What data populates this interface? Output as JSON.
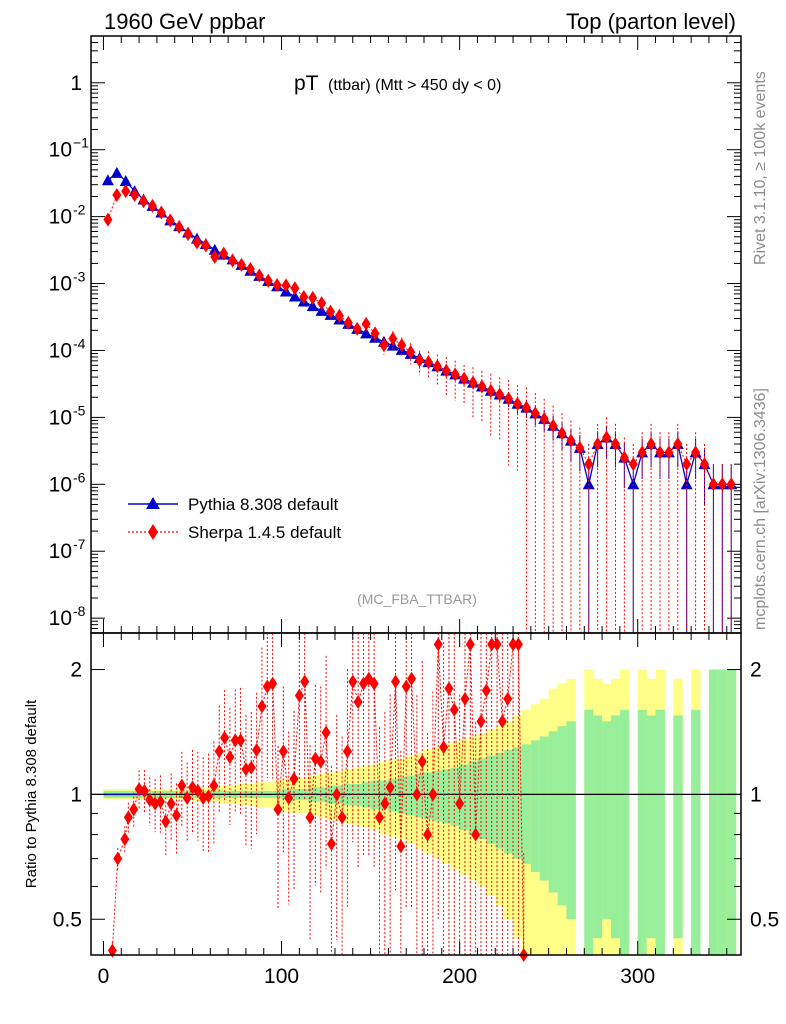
{
  "header": {
    "left": "1960 GeV ppbar",
    "right": "Top (parton level)"
  },
  "side": {
    "rivet": "Rivet 3.1.10, ≥ 100k events",
    "mcplots": "mcplots.cern.ch [arXiv:1306.3436]"
  },
  "chart_data": [
    {
      "type": "line",
      "panel": "main",
      "title_main": "pT",
      "title_sub": "(ttbar) (Mtt > 450 dy < 0)",
      "watermark": "(MC_FBA_TTBAR)",
      "yscale": "log",
      "ylim": [
        6e-09,
        5
      ],
      "xlim": [
        -7,
        358
      ],
      "ytick_labels": [
        {
          "value": 1,
          "base": "1",
          "exp": ""
        },
        {
          "value": 0.1,
          "base": "10",
          "exp": "−1"
        },
        {
          "value": 0.01,
          "base": "10",
          "exp": "-2"
        },
        {
          "value": 0.001,
          "base": "10",
          "exp": "-3"
        },
        {
          "value": 0.0001,
          "base": "10",
          "exp": "-4"
        },
        {
          "value": 1e-05,
          "base": "10",
          "exp": "-5"
        },
        {
          "value": 1e-06,
          "base": "10",
          "exp": "-6"
        },
        {
          "value": 1e-07,
          "base": "10",
          "exp": "-7"
        },
        {
          "value": 1e-08,
          "base": "10",
          "exp": "-8"
        }
      ],
      "legend": [
        {
          "label": "Pythia 8.308 default",
          "color": "#0000cc",
          "marker": "triangle",
          "line": "solid"
        },
        {
          "label": "Sherpa 1.4.5 default",
          "color": "#ff0000",
          "marker": "diamond",
          "line": "dotted"
        }
      ],
      "series": [
        {
          "name": "Pythia 8.308 default",
          "color": "#0000cc",
          "x": [
            2.5,
            7.5,
            12.5,
            17.5,
            22.5,
            27.5,
            32.5,
            37.5,
            42.5,
            47.5,
            52.5,
            57.5,
            62.5,
            67.5,
            72.5,
            77.5,
            82.5,
            87.5,
            92.5,
            97.5,
            102.5,
            107.5,
            112.5,
            117.5,
            122.5,
            127.5,
            132.5,
            137.5,
            142.5,
            147.5,
            152.5,
            157.5,
            162.5,
            167.5,
            172.5,
            177.5,
            182.5,
            187.5,
            192.5,
            197.5,
            202.5,
            207.5,
            212.5,
            217.5,
            222.5,
            227.5,
            232.5,
            237.5,
            242.5,
            247.5,
            252.5,
            257.5,
            262.5,
            267.5,
            272.5,
            277.5,
            282.5,
            287.5,
            292.5,
            297.5,
            302.5,
            307.5,
            312.5,
            317.5,
            322.5,
            327.5,
            332.5,
            337.5,
            342.5,
            347.5,
            352.5
          ],
          "y": [
            0.035,
            0.045,
            0.034,
            0.024,
            0.018,
            0.0145,
            0.0115,
            0.0088,
            0.0072,
            0.0058,
            0.0047,
            0.0039,
            0.0032,
            0.0027,
            0.0023,
            0.0019,
            0.00155,
            0.0013,
            0.00109,
            0.00091,
            0.00076,
            0.00064,
            0.00054,
            0.00046,
            0.00039,
            0.00034,
            0.00029,
            0.00025,
            0.00021,
            0.00018,
            0.000155,
            0.000135,
            0.000118,
            0.000102,
            8.9e-05,
            7.7e-05,
            6.7e-05,
            5.8e-05,
            5e-05,
            4.4e-05,
            3.8e-05,
            3.3e-05,
            2.9e-05,
            2.5e-05,
            2.2e-05,
            1.9e-05,
            1.6e-05,
            1.4e-05,
            1.15e-05,
            9.5e-06,
            7.5e-06,
            5.8e-06,
            4.5e-06,
            3.5e-06,
            1e-06,
            4e-06,
            5e-06,
            4e-06,
            2.5e-06,
            1e-06,
            3e-06,
            4e-06,
            3e-06,
            3e-06,
            4e-06,
            1e-06,
            3e-06,
            2e-06,
            1e-06,
            1e-06,
            1e-06
          ],
          "yerr_rel": [
            0.01,
            0.01,
            0.01,
            0.01,
            0.01,
            0.01,
            0.01,
            0.01,
            0.01,
            0.01,
            0.01,
            0.01,
            0.015,
            0.015,
            0.015,
            0.015,
            0.02,
            0.02,
            0.02,
            0.02,
            0.03,
            0.03,
            0.03,
            0.03,
            0.04,
            0.04,
            0.04,
            0.05,
            0.05,
            0.06,
            0.06,
            0.07,
            0.08,
            0.08,
            0.09,
            0.1,
            0.1,
            0.11,
            0.12,
            0.13,
            0.15,
            0.16,
            0.18,
            0.2,
            0.22,
            0.25,
            0.28,
            0.3,
            0.33,
            0.36,
            0.4,
            0.45,
            0.5,
            0.55,
            1,
            0.55,
            0.5,
            0.55,
            0.65,
            1,
            0.6,
            0.55,
            0.6,
            0.6,
            0.55,
            1,
            0.6,
            0.75,
            1,
            1,
            1
          ]
        },
        {
          "name": "Sherpa 1.4.5 default",
          "color": "#ff0000",
          "x": [
            2.5,
            7.5,
            12.5,
            17.5,
            22.5,
            27.5,
            32.5,
            37.5,
            42.5,
            47.5,
            52.5,
            57.5,
            62.5,
            67.5,
            72.5,
            77.5,
            82.5,
            87.5,
            92.5,
            97.5,
            102.5,
            107.5,
            112.5,
            117.5,
            122.5,
            127.5,
            132.5,
            137.5,
            142.5,
            147.5,
            152.5,
            157.5,
            162.5,
            167.5,
            172.5,
            177.5,
            182.5,
            187.5,
            192.5,
            197.5,
            202.5,
            207.5,
            212.5,
            217.5,
            222.5,
            227.5,
            232.5,
            237.5,
            242.5,
            247.5,
            252.5,
            257.5,
            262.5,
            267.5,
            272.5,
            277.5,
            282.5,
            287.5,
            292.5,
            297.5,
            302.5,
            307.5,
            312.5,
            317.5,
            322.5,
            327.5,
            332.5,
            337.5,
            342.5,
            347.5,
            352.5
          ],
          "y": [
            0.009,
            0.021,
            0.024,
            0.021,
            0.017,
            0.0145,
            0.0115,
            0.0088,
            0.007,
            0.0055,
            0.0041,
            0.0037,
            0.0025,
            0.0028,
            0.0022,
            0.0019,
            0.00165,
            0.00132,
            0.0011,
            0.00095,
            0.00094,
            0.00085,
            0.00063,
            0.00061,
            0.00051,
            0.00038,
            0.00033,
            0.00026,
            0.00021,
            0.00025,
            0.00018,
            0.00012,
            0.00015,
            0.00012,
            9.5e-05,
            7.1e-05,
            6.7e-05,
            5.8e-05,
            5e-05,
            4.4e-05,
            3.8e-05,
            3.3e-05,
            2.9e-05,
            2.5e-05,
            2.2e-05,
            1.9e-05,
            1.6e-05,
            1.4e-05,
            1.15e-05,
            9.5e-06,
            7.5e-06,
            5.8e-06,
            4.5e-06,
            3.5e-06,
            2e-06,
            4e-06,
            5e-06,
            4e-06,
            2.5e-06,
            2e-06,
            3e-06,
            4e-06,
            3e-06,
            3e-06,
            4e-06,
            2e-06,
            3e-06,
            2e-06,
            1e-06,
            1e-06,
            1e-06
          ],
          "yerr_rel": [
            0.02,
            0.02,
            0.02,
            0.02,
            0.02,
            0.02,
            0.02,
            0.02,
            0.02,
            0.025,
            0.03,
            0.03,
            0.035,
            0.035,
            0.04,
            0.04,
            0.05,
            0.05,
            0.05,
            0.06,
            0.07,
            0.08,
            0.09,
            0.1,
            0.12,
            0.13,
            0.15,
            0.17,
            0.2,
            0.22,
            0.25,
            0.28,
            0.3,
            0.3,
            0.35,
            0.4,
            0.45,
            0.5,
            0.6,
            0.6,
            0.6,
            0.7,
            0.7,
            0.8,
            0.8,
            0.9,
            0.9,
            1,
            1,
            1,
            1,
            1,
            1,
            1,
            1,
            1,
            1,
            1,
            1,
            1,
            1,
            1,
            1,
            1,
            1,
            1,
            1,
            1,
            1,
            1,
            1
          ]
        }
      ]
    },
    {
      "type": "line",
      "panel": "ratio",
      "ylabel": "Ratio to Pythia 8.308 default",
      "yscale": "log",
      "ylim": [
        0.41,
        2.45
      ],
      "xlim": [
        -7,
        358
      ],
      "xticks": [
        0,
        100,
        200,
        300
      ],
      "yticks": [
        0.5,
        1,
        2
      ],
      "reference": 1,
      "band_inner_rel": [
        0.02,
        0.02,
        0.02,
        0.02,
        0.02,
        0.02,
        0.02,
        0.02,
        0.02,
        0.02,
        0.02,
        0.02,
        0.02,
        0.02,
        0.02,
        0.02,
        0.02,
        0.02,
        0.02,
        0.02,
        0.03,
        0.03,
        0.03,
        0.04,
        0.04,
        0.05,
        0.05,
        0.06,
        0.06,
        0.07,
        0.08,
        0.08,
        0.09,
        0.1,
        0.11,
        0.12,
        0.13,
        0.14,
        0.15,
        0.16,
        0.18,
        0.2,
        0.22,
        0.24,
        0.26,
        0.28,
        0.3,
        0.32,
        0.35,
        0.38,
        0.42,
        0.46,
        0.5,
        0.55,
        0.6,
        0.55,
        0.5,
        0.55,
        0.6,
        0.6,
        0.6,
        0.55,
        0.6,
        0.6,
        0.55,
        0.6,
        0.6,
        0.6,
        1,
        1,
        1
      ],
      "band_outer_rel": [
        0.03,
        0.03,
        0.03,
        0.03,
        0.03,
        0.03,
        0.03,
        0.03,
        0.03,
        0.03,
        0.04,
        0.04,
        0.04,
        0.05,
        0.05,
        0.06,
        0.06,
        0.07,
        0.07,
        0.08,
        0.09,
        0.1,
        0.1,
        0.11,
        0.12,
        0.13,
        0.14,
        0.15,
        0.16,
        0.17,
        0.18,
        0.2,
        0.21,
        0.22,
        0.24,
        0.26,
        0.28,
        0.3,
        0.32,
        0.34,
        0.36,
        0.38,
        0.4,
        0.43,
        0.46,
        0.5,
        0.55,
        0.6,
        0.65,
        0.7,
        0.8,
        0.85,
        0.9,
        0.95,
        1,
        0.9,
        0.85,
        0.9,
        1,
        1,
        1,
        0.9,
        1,
        1,
        0.9,
        1,
        1,
        1,
        1,
        1,
        1
      ],
      "band_gaps_x": [
        267.5,
        297.5,
        317.5,
        327.5,
        337.5
      ],
      "ratio_values": [
        0.42,
        0.7,
        0.78,
        0.88,
        0.92,
        1.03,
        1.02,
        0.97,
        0.95,
        0.96,
        0.86,
        0.95,
        0.89,
        1.05,
        0.98,
        1.04,
        1.02,
        0.98,
        0.99,
        1.05,
        1.27,
        1.37,
        1.23,
        1.35,
        1.35,
        1.15,
        1.16,
        1.28,
        1.63,
        1.82,
        1.85,
        0.92,
        1.27,
        0.98,
        1.09,
        1.73,
        1.87,
        0.88,
        1.22,
        1.2,
        1.41,
        0.76,
        1.0,
        0.88,
        1.27,
        1.87,
        1.67,
        1.85,
        1.9,
        1.85,
        0.88,
        0.95,
        1.04,
        1.87,
        0.75,
        1.82,
        1.9,
        1.0,
        1.2,
        0.8,
        1.0,
        2.3,
        1.3,
        1.8,
        1.6,
        0.95,
        1.7,
        2.3,
        0.8,
        1.5,
        1.78,
        2.3,
        2.3,
        1.5,
        1.7,
        2.3,
        2.3,
        0.38
      ],
      "ratio_x": [
        5,
        8,
        12,
        14,
        17,
        20,
        23,
        26,
        29,
        32,
        35,
        38,
        41,
        44,
        47,
        50,
        53,
        56,
        59,
        62,
        65,
        68,
        71,
        74,
        77,
        80,
        83,
        86,
        89,
        92,
        95,
        98,
        101,
        104,
        107,
        110,
        113,
        116,
        119,
        122,
        125,
        128,
        131,
        134,
        137,
        140,
        143,
        146,
        149,
        152,
        155,
        158,
        161,
        164,
        167,
        170,
        173,
        176,
        179,
        182,
        185,
        188,
        191,
        194,
        197,
        200,
        203,
        206,
        209,
        212,
        215,
        218,
        221,
        224,
        227,
        230,
        233,
        236
      ]
    }
  ]
}
